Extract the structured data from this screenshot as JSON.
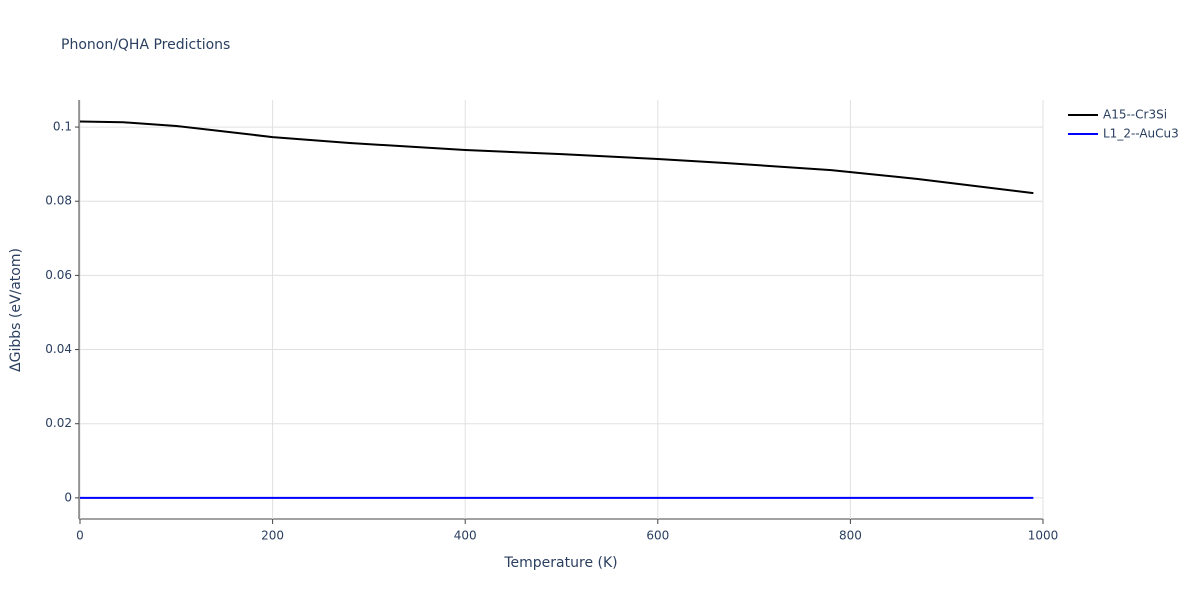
{
  "chart_data": {
    "type": "line",
    "title": "Phonon/QHA Predictions",
    "x_label": "Temperature (K)",
    "y_label": "ΔGibbs (eV/atom)",
    "x": [
      0,
      45,
      100,
      200,
      280,
      400,
      500,
      600,
      670,
      780,
      870,
      990
    ],
    "series": [
      {
        "name": "A15--Cr3Si",
        "color": "#000000",
        "values": [
          0.1015,
          0.1013,
          0.1003,
          0.0973,
          0.0957,
          0.0938,
          0.0927,
          0.0914,
          0.0903,
          0.0884,
          0.086,
          0.0822
        ]
      },
      {
        "name": "L1_2--AuCu3",
        "color": "#0000ff",
        "values": [
          0,
          0,
          0,
          0,
          0,
          0,
          0,
          0,
          0,
          0,
          0,
          0
        ]
      }
    ],
    "xlim": [
      0,
      1000
    ],
    "xticks": [
      0,
      200,
      400,
      600,
      800,
      1000
    ],
    "ylim": [
      -0.0057,
      0.1073
    ],
    "yticks": [
      0,
      0.02,
      0.04,
      0.06,
      0.08,
      0.1
    ],
    "grid": true,
    "legend": "top-right"
  }
}
